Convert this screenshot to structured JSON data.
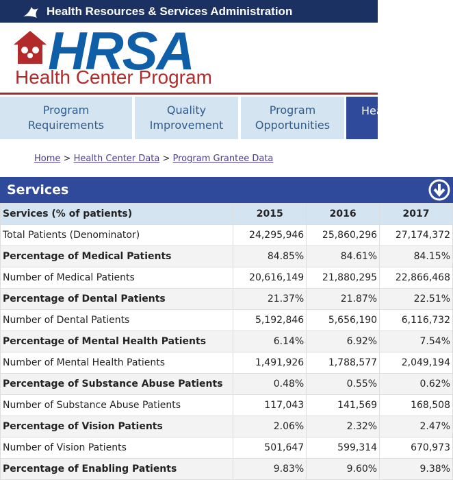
{
  "header": {
    "agency": "Health Resources & Services Administration",
    "logo": "HRSA",
    "program": "Health Center Program"
  },
  "nav": [
    "Program Requirements",
    "Quality Improvement",
    "Program Opportunities",
    "Hea"
  ],
  "breadcrumb": {
    "items": [
      "Home",
      "Health Center Data",
      "Program Grantee Data"
    ],
    "separator": ">"
  },
  "table": {
    "title": "Services",
    "columns": [
      "Services (% of patients)",
      "2015",
      "2016",
      "2017"
    ],
    "rows": [
      [
        "Total Patients (Denominator)",
        "24,295,946",
        "25,860,296",
        "27,174,372"
      ],
      [
        "Percentage of Medical Patients",
        "84.85%",
        "84.61%",
        "84.15%"
      ],
      [
        "Number of Medical Patients",
        "20,616,149",
        "21,880,295",
        "22,866,468"
      ],
      [
        "Percentage of Dental Patients",
        "21.37%",
        "21.87%",
        "22.51%"
      ],
      [
        "Number of Dental Patients",
        "5,192,846",
        "5,656,190",
        "6,116,732"
      ],
      [
        "Percentage of Mental Health Patients",
        "6.14%",
        "6.92%",
        "7.54%"
      ],
      [
        "Number of Mental Health Patients",
        "1,491,926",
        "1,788,577",
        "2,049,194"
      ],
      [
        "Percentage of Substance Abuse Patients",
        "0.48%",
        "0.55%",
        "0.62%"
      ],
      [
        "Number of Substance Abuse Patients",
        "117,043",
        "141,569",
        "168,508"
      ],
      [
        "Percentage of Vision Patients",
        "2.06%",
        "2.32%",
        "2.47%"
      ],
      [
        "Number of Vision Patients",
        "501,647",
        "599,314",
        "670,973"
      ],
      [
        "Percentage of Enabling Patients",
        "9.83%",
        "9.60%",
        "9.38%"
      ]
    ]
  }
}
